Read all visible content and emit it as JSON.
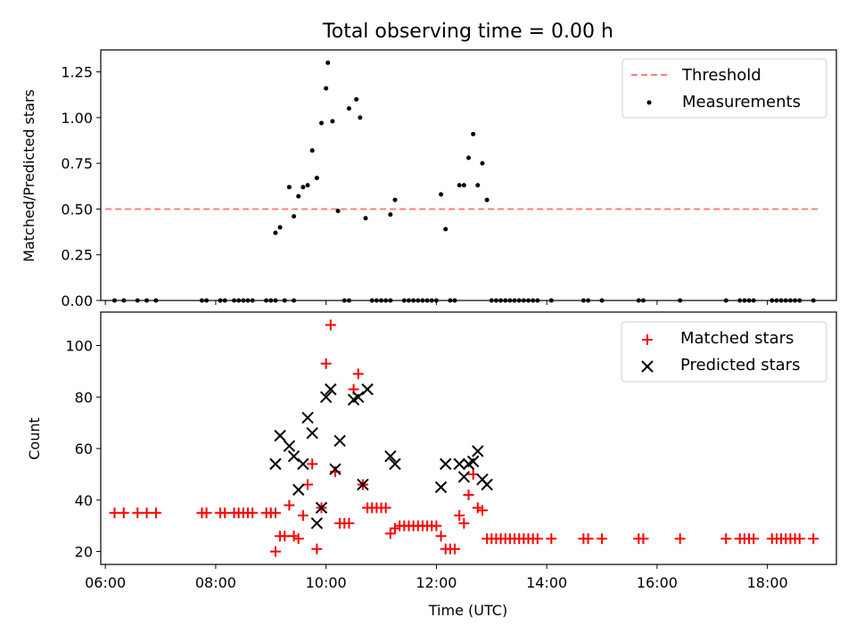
{
  "chart_data": [
    {
      "type": "scatter",
      "title": "Total observing time = 0.00 h",
      "xlabel": "",
      "ylabel": "Matched/Predicted stars",
      "xlim": [
        "05:55",
        "19:15"
      ],
      "ylim": [
        0,
        1.37
      ],
      "y_ticks": [
        "0.00",
        "0.25",
        "0.50",
        "0.75",
        "1.00",
        "1.25"
      ],
      "legend_position": "top-right",
      "threshold": {
        "name": "Threshold",
        "value": 0.5,
        "x_start": "06:00",
        "x_end": "18:55",
        "color": "#ff7f7f"
      },
      "series": [
        {
          "name": "Measurements",
          "color": "#000000",
          "points": [
            [
              "06:10",
              0
            ],
            [
              "06:20",
              0
            ],
            [
              "06:35",
              0
            ],
            [
              "06:45",
              0
            ],
            [
              "06:55",
              0
            ],
            [
              "07:45",
              0
            ],
            [
              "07:50",
              0
            ],
            [
              "08:05",
              0
            ],
            [
              "08:10",
              0
            ],
            [
              "08:20",
              0
            ],
            [
              "08:25",
              0
            ],
            [
              "08:30",
              0
            ],
            [
              "08:35",
              0
            ],
            [
              "08:40",
              0
            ],
            [
              "08:55",
              0
            ],
            [
              "09:00",
              0
            ],
            [
              "09:05",
              0
            ],
            [
              "09:15",
              0
            ],
            [
              "09:25",
              0
            ],
            [
              "09:05",
              0.37
            ],
            [
              "09:10",
              0.4
            ],
            [
              "09:20",
              0.62
            ],
            [
              "09:25",
              0.46
            ],
            [
              "09:30",
              0.57
            ],
            [
              "09:35",
              0.62
            ],
            [
              "09:40",
              0.63
            ],
            [
              "09:45",
              0.82
            ],
            [
              "09:50",
              0.67
            ],
            [
              "09:55",
              0.97
            ],
            [
              "10:00",
              1.16
            ],
            [
              "10:02",
              1.3
            ],
            [
              "10:07",
              0.98
            ],
            [
              "10:13",
              0.49
            ],
            [
              "10:20",
              0.0
            ],
            [
              "10:25",
              0.0
            ],
            [
              "10:25",
              1.05
            ],
            [
              "10:33",
              1.1
            ],
            [
              "10:37",
              1.0
            ],
            [
              "10:43",
              0.45
            ],
            [
              "10:50",
              0
            ],
            [
              "10:55",
              0
            ],
            [
              "11:00",
              0
            ],
            [
              "11:05",
              0
            ],
            [
              "11:10",
              0
            ],
            [
              "11:10",
              0.47
            ],
            [
              "11:15",
              0.55
            ],
            [
              "11:25",
              0
            ],
            [
              "11:30",
              0
            ],
            [
              "11:35",
              0
            ],
            [
              "11:40",
              0
            ],
            [
              "11:45",
              0
            ],
            [
              "11:50",
              0
            ],
            [
              "11:55",
              0
            ],
            [
              "12:00",
              0
            ],
            [
              "12:05",
              0.58
            ],
            [
              "12:10",
              0.39
            ],
            [
              "12:15",
              0
            ],
            [
              "12:20",
              0
            ],
            [
              "12:25",
              0.63
            ],
            [
              "12:30",
              0.63
            ],
            [
              "12:35",
              0.78
            ],
            [
              "12:40",
              0.91
            ],
            [
              "12:45",
              0.63
            ],
            [
              "12:50",
              0.75
            ],
            [
              "12:55",
              0.55
            ],
            [
              "13:00",
              0
            ],
            [
              "13:05",
              0
            ],
            [
              "13:10",
              0
            ],
            [
              "13:15",
              0
            ],
            [
              "13:20",
              0
            ],
            [
              "13:25",
              0
            ],
            [
              "13:30",
              0
            ],
            [
              "13:35",
              0
            ],
            [
              "13:40",
              0
            ],
            [
              "13:45",
              0
            ],
            [
              "13:50",
              0
            ],
            [
              "14:05",
              0
            ],
            [
              "14:40",
              0
            ],
            [
              "14:45",
              0
            ],
            [
              "15:00",
              0
            ],
            [
              "15:40",
              0
            ],
            [
              "15:45",
              0
            ],
            [
              "16:25",
              0
            ],
            [
              "17:15",
              0
            ],
            [
              "17:30",
              0
            ],
            [
              "17:35",
              0
            ],
            [
              "17:40",
              0
            ],
            [
              "17:45",
              0
            ],
            [
              "18:05",
              0
            ],
            [
              "18:10",
              0
            ],
            [
              "18:15",
              0
            ],
            [
              "18:20",
              0
            ],
            [
              "18:25",
              0
            ],
            [
              "18:30",
              0
            ],
            [
              "18:35",
              0
            ],
            [
              "18:50",
              0
            ]
          ]
        }
      ]
    },
    {
      "type": "scatter",
      "xlabel": "Time (UTC)",
      "ylabel": "Count",
      "xlim": [
        "05:55",
        "19:15"
      ],
      "ylim": [
        15,
        113
      ],
      "x_ticks": [
        "06:00",
        "08:00",
        "10:00",
        "12:00",
        "14:00",
        "16:00",
        "18:00"
      ],
      "y_ticks": [
        "20",
        "40",
        "60",
        "80",
        "100"
      ],
      "legend_position": "top-right",
      "series": [
        {
          "name": "Matched stars",
          "marker": "plus",
          "color": "#ff0000",
          "points": [
            [
              "06:10",
              35
            ],
            [
              "06:20",
              35
            ],
            [
              "06:35",
              35
            ],
            [
              "06:45",
              35
            ],
            [
              "06:55",
              35
            ],
            [
              "07:45",
              35
            ],
            [
              "07:50",
              35
            ],
            [
              "08:05",
              35
            ],
            [
              "08:10",
              35
            ],
            [
              "08:20",
              35
            ],
            [
              "08:25",
              35
            ],
            [
              "08:30",
              35
            ],
            [
              "08:35",
              35
            ],
            [
              "08:40",
              35
            ],
            [
              "08:55",
              35
            ],
            [
              "09:00",
              35
            ],
            [
              "09:05",
              35
            ],
            [
              "09:05",
              20
            ],
            [
              "09:10",
              26
            ],
            [
              "09:15",
              26
            ],
            [
              "09:20",
              38
            ],
            [
              "09:25",
              26
            ],
            [
              "09:30",
              25
            ],
            [
              "09:35",
              34
            ],
            [
              "09:40",
              46
            ],
            [
              "09:45",
              54
            ],
            [
              "09:50",
              21
            ],
            [
              "09:55",
              37
            ],
            [
              "10:00",
              93
            ],
            [
              "10:05",
              108
            ],
            [
              "10:10",
              51
            ],
            [
              "10:15",
              31
            ],
            [
              "10:20",
              31
            ],
            [
              "10:25",
              31
            ],
            [
              "10:30",
              83
            ],
            [
              "10:35",
              89
            ],
            [
              "10:40",
              46
            ],
            [
              "10:45",
              37
            ],
            [
              "10:50",
              37
            ],
            [
              "10:55",
              37
            ],
            [
              "11:00",
              37
            ],
            [
              "11:05",
              37
            ],
            [
              "11:10",
              27
            ],
            [
              "11:15",
              29
            ],
            [
              "11:20",
              30
            ],
            [
              "11:25",
              30
            ],
            [
              "11:30",
              30
            ],
            [
              "11:35",
              30
            ],
            [
              "11:40",
              30
            ],
            [
              "11:45",
              30
            ],
            [
              "11:50",
              30
            ],
            [
              "11:55",
              30
            ],
            [
              "12:00",
              30
            ],
            [
              "12:05",
              26
            ],
            [
              "12:10",
              21
            ],
            [
              "12:15",
              21
            ],
            [
              "12:20",
              21
            ],
            [
              "12:25",
              34
            ],
            [
              "12:30",
              31
            ],
            [
              "12:35",
              42
            ],
            [
              "12:40",
              50
            ],
            [
              "12:45",
              37
            ],
            [
              "12:50",
              36
            ],
            [
              "12:55",
              25
            ],
            [
              "13:00",
              25
            ],
            [
              "13:05",
              25
            ],
            [
              "13:10",
              25
            ],
            [
              "13:15",
              25
            ],
            [
              "13:20",
              25
            ],
            [
              "13:25",
              25
            ],
            [
              "13:30",
              25
            ],
            [
              "13:35",
              25
            ],
            [
              "13:40",
              25
            ],
            [
              "13:45",
              25
            ],
            [
              "13:50",
              25
            ],
            [
              "14:05",
              25
            ],
            [
              "14:40",
              25
            ],
            [
              "14:45",
              25
            ],
            [
              "15:00",
              25
            ],
            [
              "15:40",
              25
            ],
            [
              "15:45",
              25
            ],
            [
              "16:25",
              25
            ],
            [
              "17:15",
              25
            ],
            [
              "17:30",
              25
            ],
            [
              "17:35",
              25
            ],
            [
              "17:40",
              25
            ],
            [
              "17:45",
              25
            ],
            [
              "18:05",
              25
            ],
            [
              "18:10",
              25
            ],
            [
              "18:15",
              25
            ],
            [
              "18:20",
              25
            ],
            [
              "18:25",
              25
            ],
            [
              "18:30",
              25
            ],
            [
              "18:35",
              25
            ],
            [
              "18:50",
              25
            ]
          ]
        },
        {
          "name": "Predicted stars",
          "marker": "x",
          "color": "#000000",
          "points": [
            [
              "09:05",
              54
            ],
            [
              "09:10",
              65
            ],
            [
              "09:20",
              61
            ],
            [
              "09:25",
              57
            ],
            [
              "09:30",
              44
            ],
            [
              "09:35",
              54
            ],
            [
              "09:40",
              72
            ],
            [
              "09:45",
              66
            ],
            [
              "09:50",
              31
            ],
            [
              "09:55",
              37
            ],
            [
              "10:00",
              80
            ],
            [
              "10:05",
              83
            ],
            [
              "10:10",
              52
            ],
            [
              "10:15",
              63
            ],
            [
              "10:30",
              79
            ],
            [
              "10:35",
              80
            ],
            [
              "10:40",
              46
            ],
            [
              "10:45",
              83
            ],
            [
              "11:10",
              57
            ],
            [
              "11:15",
              54
            ],
            [
              "12:05",
              45
            ],
            [
              "12:10",
              54
            ],
            [
              "12:25",
              54
            ],
            [
              "12:30",
              49
            ],
            [
              "12:35",
              54
            ],
            [
              "12:40",
              55
            ],
            [
              "12:45",
              59
            ],
            [
              "12:50",
              48
            ],
            [
              "12:55",
              46
            ]
          ]
        }
      ]
    }
  ]
}
